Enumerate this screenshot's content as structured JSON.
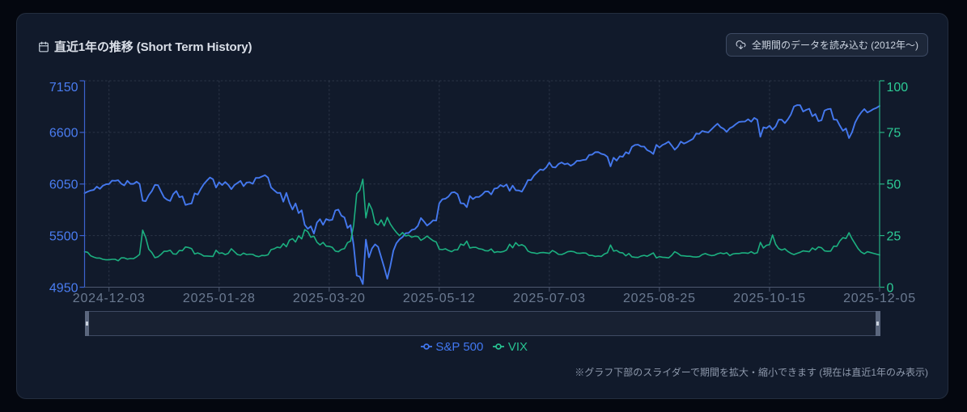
{
  "page": {
    "bg": "#04070f"
  },
  "card": {
    "bg": "#111a2b",
    "title": "直近1年の推移 (Short Term History)",
    "load_all_button": {
      "label": "全期間のデータを読み込む (2012年〜)"
    },
    "footnote": "※グラフ下部のスライダーで期間を拡大・縮小できます (現在は直近1年のみ表示)"
  },
  "legend": [
    {
      "label": "S&P 500",
      "color": "#4177f0"
    },
    {
      "label": "VIX",
      "color": "#27c291"
    }
  ],
  "chart_data": {
    "type": "line",
    "title": "直近1年の推移 (Short Term History)",
    "x": [
      "2024-11-20",
      "2024-11-21",
      "2024-11-22",
      "2024-11-25",
      "2024-11-26",
      "2024-11-27",
      "2024-11-29",
      "2024-12-02",
      "2024-12-03",
      "2024-12-04",
      "2024-12-05",
      "2024-12-06",
      "2024-12-09",
      "2024-12-10",
      "2024-12-11",
      "2024-12-12",
      "2024-12-13",
      "2024-12-16",
      "2024-12-17",
      "2024-12-18",
      "2024-12-19",
      "2024-12-20",
      "2024-12-23",
      "2024-12-24",
      "2024-12-26",
      "2024-12-27",
      "2024-12-30",
      "2024-12-31",
      "2025-01-02",
      "2025-01-03",
      "2025-01-06",
      "2025-01-07",
      "2025-01-08",
      "2025-01-10",
      "2025-01-13",
      "2025-01-14",
      "2025-01-15",
      "2025-01-16",
      "2025-01-17",
      "2025-01-21",
      "2025-01-22",
      "2025-01-23",
      "2025-01-24",
      "2025-01-27",
      "2025-01-28",
      "2025-01-29",
      "2025-01-30",
      "2025-01-31",
      "2025-02-03",
      "2025-02-04",
      "2025-02-05",
      "2025-02-06",
      "2025-02-07",
      "2025-02-10",
      "2025-02-11",
      "2025-02-12",
      "2025-02-13",
      "2025-02-14",
      "2025-02-18",
      "2025-02-19",
      "2025-02-20",
      "2025-02-21",
      "2025-02-24",
      "2025-02-25",
      "2025-02-26",
      "2025-02-27",
      "2025-02-28",
      "2025-03-03",
      "2025-03-04",
      "2025-03-05",
      "2025-03-06",
      "2025-03-07",
      "2025-03-10",
      "2025-03-11",
      "2025-03-12",
      "2025-03-13",
      "2025-03-14",
      "2025-03-17",
      "2025-03-18",
      "2025-03-19",
      "2025-03-20",
      "2025-03-21",
      "2025-03-24",
      "2025-03-25",
      "2025-03-26",
      "2025-03-27",
      "2025-03-28",
      "2025-03-31",
      "2025-04-01",
      "2025-04-02",
      "2025-04-03",
      "2025-04-04",
      "2025-04-07",
      "2025-04-08",
      "2025-04-09",
      "2025-04-10",
      "2025-04-11",
      "2025-04-14",
      "2025-04-15",
      "2025-04-16",
      "2025-04-17",
      "2025-04-21",
      "2025-04-22",
      "2025-04-23",
      "2025-04-24",
      "2025-04-25",
      "2025-04-28",
      "2025-04-29",
      "2025-04-30",
      "2025-05-01",
      "2025-05-02",
      "2025-05-05",
      "2025-05-06",
      "2025-05-07",
      "2025-05-08",
      "2025-05-09",
      "2025-05-12",
      "2025-05-13",
      "2025-05-14",
      "2025-05-15",
      "2025-05-16",
      "2025-05-19",
      "2025-05-20",
      "2025-05-21",
      "2025-05-22",
      "2025-05-23",
      "2025-05-27",
      "2025-05-28",
      "2025-05-29",
      "2025-05-30",
      "2025-06-02",
      "2025-06-03",
      "2025-06-04",
      "2025-06-05",
      "2025-06-06",
      "2025-06-09",
      "2025-06-10",
      "2025-06-11",
      "2025-06-12",
      "2025-06-13",
      "2025-06-16",
      "2025-06-17",
      "2025-06-18",
      "2025-06-20",
      "2025-06-23",
      "2025-06-24",
      "2025-06-25",
      "2025-06-26",
      "2025-06-27",
      "2025-06-30",
      "2025-07-01",
      "2025-07-02",
      "2025-07-03",
      "2025-07-07",
      "2025-07-08",
      "2025-07-09",
      "2025-07-10",
      "2025-07-11",
      "2025-07-14",
      "2025-07-15",
      "2025-07-16",
      "2025-07-17",
      "2025-07-18",
      "2025-07-21",
      "2025-07-22",
      "2025-07-23",
      "2025-07-24",
      "2025-07-25",
      "2025-07-28",
      "2025-07-29",
      "2025-07-30",
      "2025-07-31",
      "2025-08-01",
      "2025-08-04",
      "2025-08-05",
      "2025-08-06",
      "2025-08-07",
      "2025-08-08",
      "2025-08-11",
      "2025-08-12",
      "2025-08-13",
      "2025-08-14",
      "2025-08-15",
      "2025-08-18",
      "2025-08-19",
      "2025-08-20",
      "2025-08-21",
      "2025-08-22",
      "2025-08-25",
      "2025-08-26",
      "2025-08-27",
      "2025-08-28",
      "2025-08-29",
      "2025-09-02",
      "2025-09-03",
      "2025-09-04",
      "2025-09-05",
      "2025-09-08",
      "2025-09-09",
      "2025-09-10",
      "2025-09-11",
      "2025-09-12",
      "2025-09-15",
      "2025-09-16",
      "2025-09-17",
      "2025-09-18",
      "2025-09-19",
      "2025-09-22",
      "2025-09-23",
      "2025-09-24",
      "2025-09-25",
      "2025-09-26",
      "2025-09-29",
      "2025-09-30",
      "2025-10-01",
      "2025-10-02",
      "2025-10-03",
      "2025-10-06",
      "2025-10-07",
      "2025-10-08",
      "2025-10-09",
      "2025-10-10",
      "2025-10-13",
      "2025-10-14",
      "2025-10-15",
      "2025-10-16",
      "2025-10-17",
      "2025-10-20",
      "2025-10-21",
      "2025-10-22",
      "2025-10-23",
      "2025-10-24",
      "2025-10-27",
      "2025-10-28",
      "2025-10-29",
      "2025-10-30",
      "2025-10-31",
      "2025-11-03",
      "2025-11-04",
      "2025-11-05",
      "2025-11-06",
      "2025-11-07",
      "2025-11-10",
      "2025-11-11",
      "2025-11-12",
      "2025-11-13",
      "2025-11-14",
      "2025-11-17",
      "2025-11-18",
      "2025-11-19",
      "2025-11-20",
      "2025-11-21",
      "2025-11-24",
      "2025-11-25",
      "2025-11-26",
      "2025-11-28",
      "2025-12-01",
      "2025-12-02",
      "2025-12-03",
      "2025-12-04",
      "2025-12-05"
    ],
    "x_tick_labels": [
      "2024-12-03",
      "2025-01-28",
      "2025-03-20",
      "2025-05-12",
      "2025-07-03",
      "2025-08-25",
      "2025-10-15",
      "2025-12-05"
    ],
    "series": [
      {
        "name": "S&P 500",
        "axis": "left",
        "color": "#4478ee",
        "width": 1.9,
        "values": [
          5952,
          5968,
          5981,
          5987,
          6022,
          5998,
          6032,
          6047,
          6050,
          6086,
          6083.5,
          6090,
          6053,
          6035,
          6084,
          6051,
          6051,
          6074,
          6051,
          5872,
          5867,
          5931,
          5974,
          6040,
          6038,
          5971,
          5907,
          5882,
          5869,
          5942,
          5975,
          5909,
          5918,
          5827,
          5836,
          5843,
          5950,
          5937,
          5997,
          6049,
          6086,
          6119,
          6101,
          6012,
          6068,
          6039,
          6071,
          6041,
          5995,
          6038,
          6061,
          6083,
          6026,
          6066,
          6069,
          6052,
          6115,
          6115,
          6130,
          6144,
          6118,
          6013,
          5983,
          5955,
          5956,
          5861,
          5955,
          5850,
          5778,
          5843,
          5739,
          5770,
          5615,
          5572,
          5599,
          5521,
          5639,
          5675,
          5615,
          5676,
          5663,
          5668,
          5768,
          5777,
          5712,
          5693,
          5581,
          5612,
          5396,
          5074,
          5062,
          4983,
          5457,
          5268,
          5363,
          5406,
          5380,
          5270,
          5160,
          5040,
          5175,
          5340,
          5420,
          5460,
          5485,
          5525,
          5529,
          5561,
          5569,
          5604,
          5687,
          5650,
          5607,
          5631,
          5663,
          5660,
          5844,
          5887,
          5893,
          5916,
          5958,
          5963,
          5941,
          5845,
          5842,
          5803,
          5922,
          5889,
          5912,
          5912,
          5936,
          5970,
          5971,
          5939,
          6000,
          6006,
          6039,
          6022,
          6045,
          5977,
          6033,
          5983,
          5981,
          5968,
          6025,
          6092,
          6092,
          6141,
          6173,
          6205,
          6198,
          6227,
          6279,
          6230,
          6226,
          6263,
          6280,
          6260,
          6269,
          6244,
          6264,
          6297,
          6297,
          6306,
          6310,
          6359,
          6363,
          6389,
          6390,
          6371,
          6363,
          6339,
          6238,
          6330,
          6299,
          6345,
          6340,
          6389,
          6373,
          6446,
          6466,
          6469,
          6450,
          6449,
          6411,
          6395,
          6370,
          6467,
          6439,
          6466,
          6481,
          6501,
          6460,
          6415,
          6448,
          6502,
          6481,
          6495,
          6513,
          6532,
          6587,
          6584,
          6615,
          6606,
          6600,
          6632,
          6664,
          6693,
          6656,
          6638,
          6605,
          6644,
          6661,
          6688,
          6711,
          6715,
          6716,
          6740,
          6714,
          6754,
          6735,
          6553,
          6654,
          6645,
          6671,
          6629,
          6664,
          6736,
          6735,
          6699,
          6739,
          6792,
          6876,
          6891,
          6890,
          6822,
          6840,
          6852,
          6772,
          6796,
          6720,
          6729,
          6833,
          6847,
          6851,
          6737,
          6734,
          6672,
          6617,
          6642,
          6539,
          6603,
          6705,
          6766,
          6813,
          6849,
          6812,
          6829,
          6849,
          6862,
          6882
        ]
      },
      {
        "name": "VIX",
        "axis": "right",
        "color": "#1cb080",
        "width": 1.6,
        "values": [
          17.2,
          16.9,
          15.2,
          14.6,
          14.1,
          14.1,
          13.5,
          13.3,
          13.3,
          13.5,
          13.5,
          12.8,
          14.2,
          14.2,
          13.6,
          13.9,
          13.8,
          14.7,
          15.9,
          27.6,
          24.1,
          18.4,
          16.8,
          14.3,
          14.7,
          15.9,
          17.4,
          17.4,
          17.9,
          16.1,
          16.0,
          17.8,
          17.7,
          19.5,
          19.2,
          18.7,
          16.1,
          16.6,
          16.0,
          15.1,
          15.1,
          15.0,
          14.9,
          17.9,
          16.4,
          16.6,
          15.8,
          16.4,
          18.6,
          17.2,
          15.8,
          15.5,
          16.5,
          15.8,
          16.0,
          15.9,
          15.1,
          14.8,
          15.4,
          15.3,
          15.7,
          18.2,
          18.6,
          19.4,
          19.1,
          21.1,
          19.6,
          22.8,
          23.5,
          21.9,
          24.9,
          23.4,
          27.9,
          26.9,
          24.2,
          24.7,
          21.8,
          20.5,
          21.7,
          19.9,
          19.8,
          19.3,
          17.5,
          17.2,
          18.3,
          18.7,
          21.6,
          22.3,
          30.0,
          45.3,
          47.0,
          52.3,
          33.6,
          40.7,
          37.6,
          31.1,
          30.1,
          32.6,
          29.7,
          33.8,
          30.6,
          28.4,
          26.5,
          25.0,
          26.5,
          24.8,
          25.2,
          24.2,
          24.7,
          24.6,
          22.7,
          23.6,
          24.8,
          23.6,
          22.5,
          21.9,
          18.4,
          18.2,
          18.6,
          17.8,
          17.2,
          18.1,
          18.1,
          20.9,
          20.3,
          22.3,
          19.0,
          19.3,
          19.3,
          18.6,
          18.4,
          17.7,
          17.6,
          18.5,
          16.8,
          17.2,
          17.0,
          17.3,
          18.0,
          20.8,
          19.1,
          21.6,
          20.1,
          20.6,
          19.8,
          17.5,
          16.8,
          16.6,
          16.3,
          16.7,
          16.8,
          16.6,
          16.4,
          17.8,
          17.0,
          15.9,
          15.8,
          16.4,
          17.2,
          17.4,
          17.2,
          16.5,
          16.4,
          16.6,
          16.5,
          15.4,
          15.4,
          14.9,
          15.1,
          14.9,
          16.1,
          16.7,
          20.4,
          17.5,
          17.8,
          16.8,
          16.6,
          15.2,
          16.3,
          14.7,
          14.5,
          14.4,
          15.1,
          15.4,
          15.0,
          15.8,
          16.6,
          14.2,
          14.8,
          14.5,
          14.4,
          14.2,
          15.4,
          17.2,
          16.4,
          15.3,
          15.2,
          15.0,
          15.0,
          14.7,
          14.6,
          14.8,
          15.8,
          16.3,
          15.7,
          15.3,
          15.5,
          16.2,
          16.6,
          16.2,
          16.7,
          15.3,
          16.1,
          16.3,
          16.3,
          16.6,
          16.6,
          16.4,
          17.2,
          16.3,
          16.7,
          21.7,
          19.0,
          20.3,
          20.6,
          25.3,
          20.8,
          18.7,
          18.0,
          18.6,
          17.3,
          16.4,
          15.8,
          16.4,
          16.9,
          17.6,
          17.4,
          17.2,
          19.0,
          18.1,
          19.5,
          19.1,
          17.6,
          17.4,
          17.5,
          19.9,
          19.8,
          22.4,
          24.0,
          23.6,
          26.4,
          23.4,
          21.0,
          18.6,
          17.0,
          16.2,
          17.2,
          16.8,
          16.4,
          16.0,
          15.6
        ]
      }
    ],
    "left_axis": {
      "min": 4950,
      "max": 7150,
      "ticks": [
        4950,
        5500,
        6050,
        6600,
        7150
      ],
      "label_color": "#4a7df2",
      "line_color": "#3c63cf"
    },
    "right_axis": {
      "min": 0,
      "max": 100,
      "ticks": [
        0,
        25,
        50,
        75,
        100
      ],
      "label_color": "#2dcc96",
      "line_color": "#28b183"
    },
    "x_axis": {
      "label_color": "#6b7a91",
      "line_color": "#4d5870"
    },
    "grid_line_color": "rgba(148,163,184,0.20)",
    "legend_position": "bottom"
  }
}
